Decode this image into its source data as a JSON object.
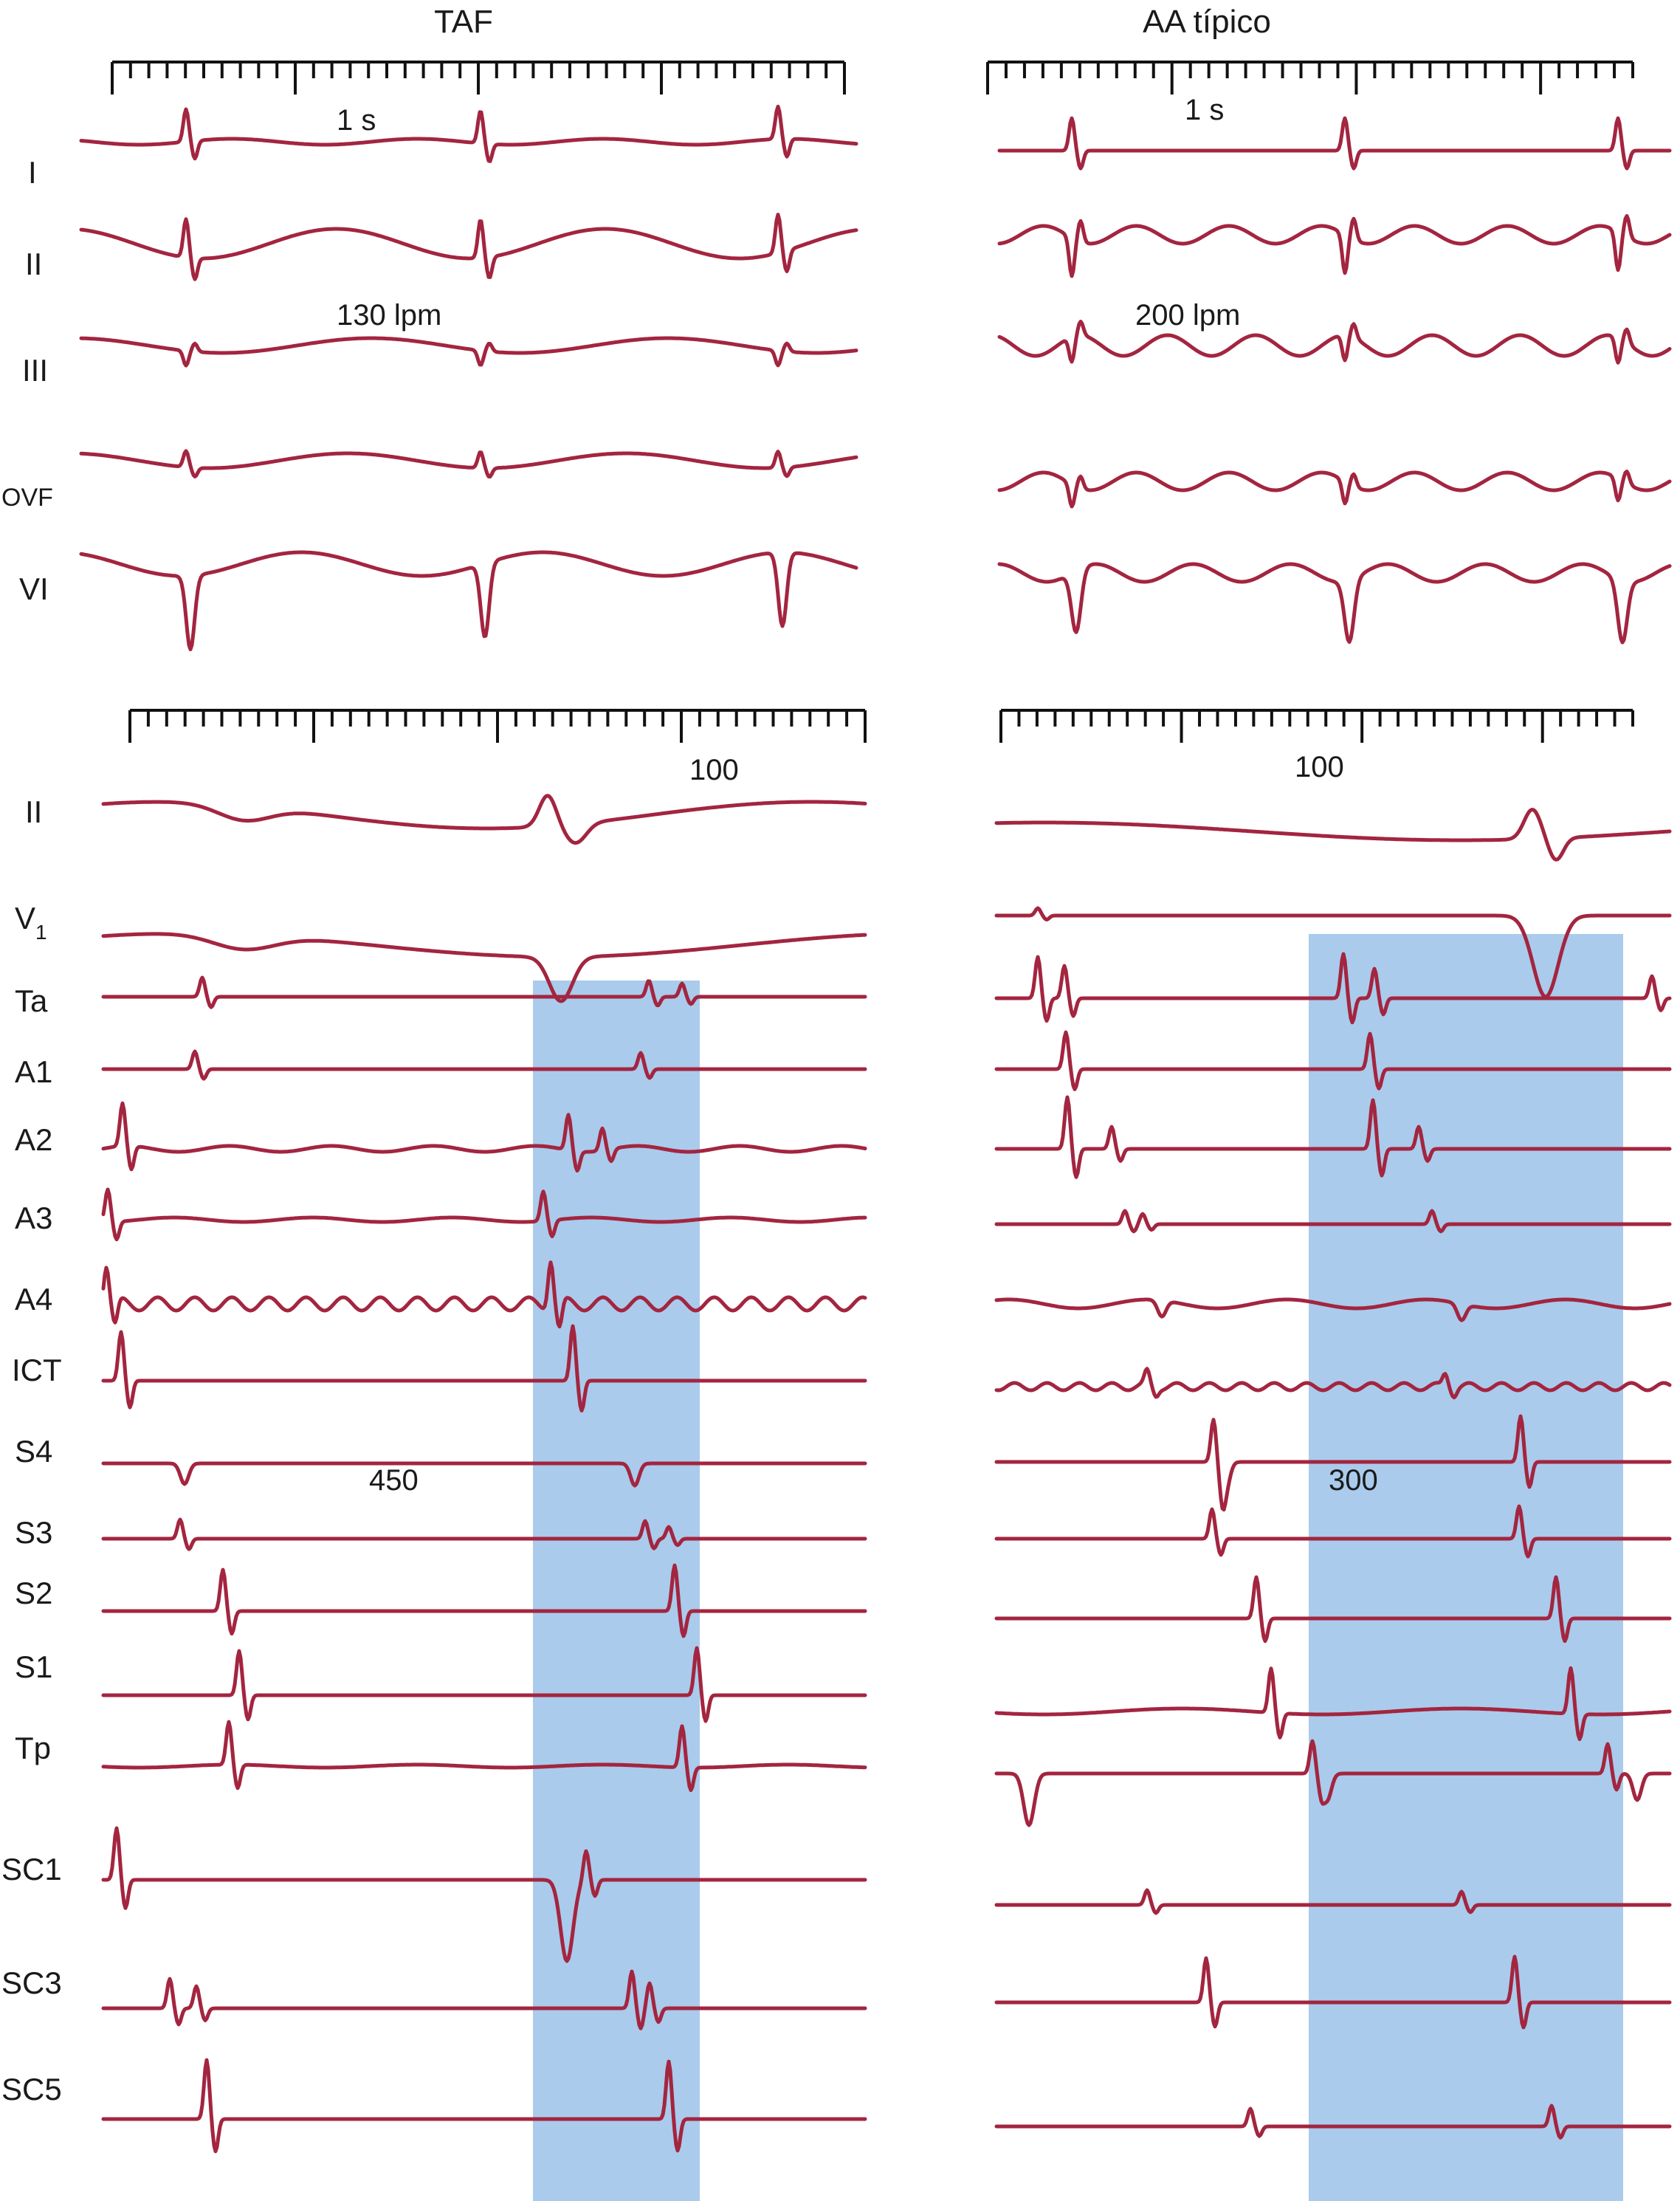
{
  "colors": {
    "trace": "#a3253f",
    "highlight": "#aacbec",
    "ink": "#111111"
  },
  "panels": {
    "left": {
      "title": "TAF",
      "scale_label": "1 s",
      "rate_label": "130 lpm",
      "interval_top": "100",
      "interval_bottom": "450"
    },
    "right": {
      "title": "AA típico",
      "scale_label": "1 s",
      "rate_label": "200 lpm",
      "interval_top": "100",
      "interval_bottom": "300"
    }
  },
  "surface_leads": [
    "I",
    "II",
    "III",
    "OVF",
    "VI"
  ],
  "intracardiac_leads": [
    "II",
    "V",
    "Ta",
    "A1",
    "A2",
    "A3",
    "A4",
    "ICT",
    "S4",
    "S3",
    "S2",
    "S1",
    "Tp",
    "SC1",
    "SC3",
    "SC5"
  ],
  "v1_subscript": "1"
}
